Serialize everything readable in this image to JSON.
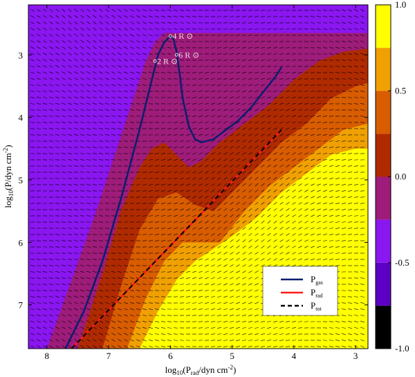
{
  "chart_data": {
    "type": "contour",
    "title": "",
    "xlabel": "log10(Prad/dyn cm-2)",
    "ylabel": "log10(P/dyn cm-2)",
    "xlabel_parts": {
      "log": "log",
      "log_sub": "10",
      "open": "(P",
      "p_sub": "rad",
      "unit": "/dyn cm",
      "exp": "-2",
      "close": ")"
    },
    "ylabel_parts": {
      "log": "log",
      "log_sub": "10",
      "open": "(P/dyn cm",
      "exp": "-2",
      "close": ")"
    },
    "xlim": [
      8.3,
      2.8
    ],
    "ylim": [
      7.7,
      2.2
    ],
    "x_reversed": true,
    "y_reversed": true,
    "xticks": [
      8,
      7,
      6,
      5,
      4,
      3
    ],
    "xtick_labels": [
      "8",
      "7",
      "6",
      "5",
      "4",
      "3"
    ],
    "yticks": [
      3,
      4,
      5,
      6,
      7
    ],
    "ytick_labels": [
      "3",
      "4",
      "5",
      "6",
      "7"
    ],
    "colorbar": {
      "range": [
        -1.0,
        1.0
      ],
      "tick_values": [
        1.0,
        0.5,
        0.0,
        -0.5,
        -1.0
      ],
      "tick_labels": [
        "1.0",
        "0.5",
        "0.0",
        "-0.5",
        "-1.0"
      ],
      "levels": [
        -1.0,
        -0.75,
        -0.5,
        -0.25,
        0.0,
        0.25,
        0.5,
        0.75,
        1.0
      ],
      "colors": [
        "#000000",
        "#5b00c4",
        "#8a16f0",
        "#9e1c7a",
        "#b02a00",
        "#d85c00",
        "#f0a000",
        "#ffff00"
      ]
    },
    "series": [
      {
        "name": "Pgas",
        "label_main": "P",
        "label_sub": "gas",
        "color": "#0a1e6e",
        "style": "solid",
        "x": [
          7.7,
          7.4,
          7.1,
          6.8,
          6.5,
          6.3,
          6.2,
          6.1,
          6.0,
          5.95,
          5.9,
          5.85,
          5.8,
          5.7,
          5.6,
          5.5,
          5.3,
          5.1,
          4.9,
          4.7,
          4.5,
          4.3,
          4.2
        ],
        "y": [
          7.7,
          7.1,
          6.3,
          5.3,
          4.2,
          3.4,
          3.0,
          2.8,
          2.7,
          2.75,
          2.95,
          3.3,
          3.7,
          4.15,
          4.35,
          4.4,
          4.35,
          4.2,
          4.05,
          3.85,
          3.6,
          3.35,
          3.2
        ]
      },
      {
        "name": "Prad",
        "label_main": "P",
        "label_sub": "rad",
        "color": "#ff1a1a",
        "style": "solid",
        "x": [
          7.6,
          4.2
        ],
        "y": [
          7.7,
          4.2
        ]
      },
      {
        "name": "Ptot",
        "label_main": "P",
        "label_sub": "tot",
        "color": "#000000",
        "style": "dashed",
        "x": [
          7.6,
          4.2
        ],
        "y": [
          7.7,
          4.2
        ]
      }
    ],
    "annotations": [
      {
        "text": "4 R",
        "symbol": "⊙",
        "x": 6.0,
        "y": 2.7
      },
      {
        "text": "2 R",
        "symbol": "⊙",
        "x": 6.25,
        "y": 3.1
      },
      {
        "text": "6 R",
        "symbol": "⊙",
        "x": 5.9,
        "y": 3.0
      }
    ],
    "contour_boundaries": [
      {
        "level": -0.5,
        "x": [
          8.3,
          7.9,
          7.5,
          7.1,
          6.8,
          6.55,
          6.4,
          6.3
        ],
        "y": [
          6.6,
          5.5,
          4.5,
          3.6,
          3.0,
          2.6,
          2.4,
          2.2
        ]
      },
      {
        "level": -0.25,
        "x": [
          8.0,
          7.6,
          7.2,
          6.9,
          6.6,
          6.4,
          6.25,
          6.1
        ],
        "y": [
          7.7,
          6.6,
          5.5,
          4.6,
          3.7,
          3.1,
          2.8,
          2.65
        ]
      },
      {
        "level": 0.0,
        "x": [
          7.5,
          7.1,
          6.8,
          6.5,
          6.3,
          6.1,
          5.9,
          5.7,
          5.5,
          5.2,
          4.8,
          4.4,
          4.0,
          3.6,
          3.2,
          2.8
        ],
        "y": [
          7.7,
          6.5,
          5.5,
          4.8,
          4.5,
          4.4,
          4.6,
          4.8,
          4.7,
          4.4,
          4.1,
          3.8,
          3.4,
          3.1,
          2.95,
          2.9
        ]
      },
      {
        "level": 0.25,
        "x": [
          7.1,
          6.8,
          6.5,
          6.2,
          5.9,
          5.6,
          5.3,
          5.0,
          4.6,
          4.2,
          3.8,
          3.4,
          3.0,
          2.8
        ],
        "y": [
          7.7,
          6.7,
          5.8,
          5.3,
          5.2,
          5.4,
          5.5,
          5.2,
          4.8,
          4.4,
          4.1,
          3.7,
          3.5,
          3.45
        ]
      },
      {
        "level": 0.5,
        "x": [
          6.7,
          6.4,
          6.1,
          5.8,
          5.5,
          5.2,
          4.8,
          4.4,
          4.0,
          3.6,
          3.2,
          2.8
        ],
        "y": [
          7.7,
          6.9,
          6.3,
          6.0,
          6.0,
          6.0,
          5.5,
          5.1,
          4.8,
          4.5,
          4.2,
          4.1
        ]
      },
      {
        "level": 0.75,
        "x": [
          6.5,
          6.2,
          5.9,
          5.6,
          5.3,
          5.0,
          4.6,
          4.2,
          3.8,
          3.4,
          3.0,
          2.8
        ],
        "y": [
          7.7,
          7.1,
          6.6,
          6.3,
          6.1,
          5.9,
          5.6,
          5.2,
          4.9,
          4.6,
          4.5,
          4.5
        ]
      }
    ]
  }
}
